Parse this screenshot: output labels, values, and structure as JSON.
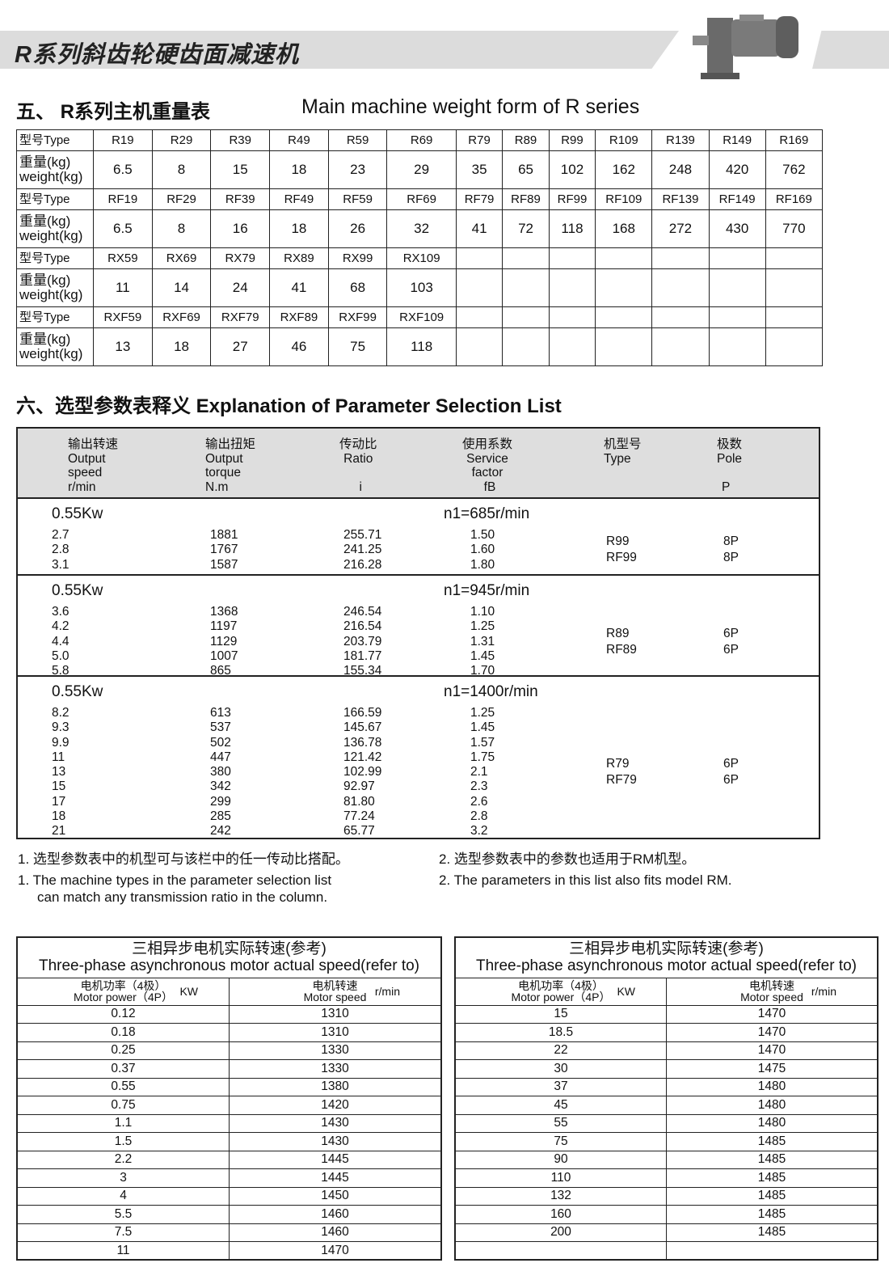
{
  "banner": {
    "title": "R系列斜齿轮硬齿面减速机"
  },
  "section5": {
    "title_cn": "五、 R系列主机重量表",
    "title_en": "Main machine weight form of  R series"
  },
  "weight_table": {
    "type_label": "型号Type",
    "weight_label_cn": "重量(kg)",
    "weight_label_en": "weight(kg)",
    "groups": [
      {
        "types": [
          "R19",
          "R29",
          "R39",
          "R49",
          "R59",
          "R69",
          "R79",
          "R89",
          "R99",
          "R109",
          "R139",
          "R149",
          "R169"
        ],
        "weights": [
          "6.5",
          "8",
          "15",
          "18",
          "23",
          "29",
          "35",
          "65",
          "102",
          "162",
          "248",
          "420",
          "762"
        ]
      },
      {
        "types": [
          "RF19",
          "RF29",
          "RF39",
          "RF49",
          "RF59",
          "RF69",
          "RF79",
          "RF89",
          "RF99",
          "RF109",
          "RF139",
          "RF149",
          "RF169"
        ],
        "weights": [
          "6.5",
          "8",
          "16",
          "18",
          "26",
          "32",
          "41",
          "72",
          "118",
          "168",
          "272",
          "430",
          "770"
        ]
      },
      {
        "types": [
          "RX59",
          "RX69",
          "RX79",
          "RX89",
          "RX99",
          "RX109",
          "",
          "",
          "",
          "",
          "",
          "",
          ""
        ],
        "weights": [
          "11",
          "14",
          "24",
          "41",
          "68",
          "103",
          "",
          "",
          "",
          "",
          "",
          "",
          ""
        ]
      },
      {
        "types": [
          "RXF59",
          "RXF69",
          "RXF79",
          "RXF89",
          "RXF99",
          "RXF109",
          "",
          "",
          "",
          "",
          "",
          "",
          ""
        ],
        "weights": [
          "13",
          "18",
          "27",
          "46",
          "75",
          "118",
          "",
          "",
          "",
          "",
          "",
          "",
          ""
        ]
      }
    ]
  },
  "section6": {
    "title": "六、选型参数表释义 Explanation  of  Parameter Selection List"
  },
  "param_table": {
    "headers": [
      {
        "lines": [
          "输出转速",
          "Output",
          "speed",
          "r/min"
        ]
      },
      {
        "lines": [
          "输出扭矩",
          "Output",
          "torque",
          "N.m"
        ]
      },
      {
        "lines": [
          "传动比",
          "Ratio",
          "",
          "i"
        ]
      },
      {
        "lines": [
          "使用系数",
          "Service",
          "factor",
          "fB"
        ]
      },
      {
        "lines": [
          "机型号",
          "Type",
          "",
          ""
        ]
      },
      {
        "lines": [
          "极数",
          "Pole",
          "",
          "P"
        ]
      }
    ],
    "groups": [
      {
        "power": "0.55Kw",
        "n1": "n1=685r/min",
        "types": [
          "R99",
          "RF99"
        ],
        "poles": [
          "8P",
          "8P"
        ],
        "rows": [
          [
            "2.7",
            "1881",
            "255.71",
            "1.50"
          ],
          [
            "2.8",
            "1767",
            "241.25",
            "1.60"
          ],
          [
            "3.1",
            "1587",
            "216.28",
            "1.80"
          ]
        ]
      },
      {
        "power": "0.55Kw",
        "n1": "n1=945r/min",
        "types": [
          "R89",
          "RF89"
        ],
        "poles": [
          "6P",
          "6P"
        ],
        "rows": [
          [
            "3.6",
            "1368",
            "246.54",
            "1.10"
          ],
          [
            "4.2",
            "1197",
            "216.54",
            "1.25"
          ],
          [
            "4.4",
            "1129",
            "203.79",
            "1.31"
          ],
          [
            "5.0",
            "1007",
            "181.77",
            "1.45"
          ],
          [
            "5.8",
            "865",
            "155.34",
            "1.70"
          ]
        ]
      },
      {
        "power": "0.55Kw",
        "n1": "n1=1400r/min",
        "types": [
          "R79",
          "RF79"
        ],
        "poles": [
          "6P",
          "6P"
        ],
        "rows": [
          [
            "8.2",
            "613",
            "166.59",
            "1.25"
          ],
          [
            "9.3",
            "537",
            "145.67",
            "1.45"
          ],
          [
            "9.9",
            "502",
            "136.78",
            "1.57"
          ],
          [
            "11",
            "447",
            "121.42",
            "1.75"
          ],
          [
            "13",
            "380",
            "102.99",
            "2.1"
          ],
          [
            "15",
            "342",
            "92.97",
            "2.3"
          ],
          [
            "17",
            "299",
            "81.80",
            "2.6"
          ],
          [
            "18",
            "285",
            "77.24",
            "2.8"
          ],
          [
            "21",
            "242",
            "65.77",
            "3.2"
          ]
        ]
      }
    ]
  },
  "notes": {
    "n1_cn": "1. 选型参数表中的机型可与该栏中的任一传动比搭配。",
    "n2_cn": "2. 选型参数表中的参数也适用于RM机型。",
    "n1_en_a": "1. The machine types in the parameter selection list",
    "n1_en_b": "can match any transmission ratio in the column.",
    "n2_en": "2. The parameters in this list also fits model RM."
  },
  "motor_tables": [
    {
      "title_cn": "三相异步电机实际转速(参考)",
      "title_en": "Three-phase asynchronous motor actual speed(refer to)",
      "col1_cn": "电机功率（4极）",
      "col1_en": "Motor power（4P）",
      "col1_unit": "KW",
      "col2_cn": "电机转速",
      "col2_en": "Motor speed",
      "col2_unit": "r/min",
      "rows": [
        [
          "0.12",
          "1310"
        ],
        [
          "0.18",
          "1310"
        ],
        [
          "0.25",
          "1330"
        ],
        [
          "0.37",
          "1330"
        ],
        [
          "0.55",
          "1380"
        ],
        [
          "0.75",
          "1420"
        ],
        [
          "1.1",
          "1430"
        ],
        [
          "1.5",
          "1430"
        ],
        [
          "2.2",
          "1445"
        ],
        [
          "3",
          "1445"
        ],
        [
          "4",
          "1450"
        ],
        [
          "5.5",
          "1460"
        ],
        [
          "7.5",
          "1460"
        ],
        [
          "11",
          "1470"
        ]
      ]
    },
    {
      "title_cn": "三相异步电机实际转速(参考)",
      "title_en": "Three-phase asynchronous motor actual speed(refer to)",
      "col1_cn": "电机功率（4极）",
      "col1_en": "Motor power（4P）",
      "col1_unit": "KW",
      "col2_cn": "电机转速",
      "col2_en": "Motor speed",
      "col2_unit": "r/min",
      "rows": [
        [
          "15",
          "1470"
        ],
        [
          "18.5",
          "1470"
        ],
        [
          "22",
          "1470"
        ],
        [
          "30",
          "1475"
        ],
        [
          "37",
          "1480"
        ],
        [
          "45",
          "1480"
        ],
        [
          "55",
          "1480"
        ],
        [
          "75",
          "1485"
        ],
        [
          "90",
          "1485"
        ],
        [
          "110",
          "1485"
        ],
        [
          "132",
          "1485"
        ],
        [
          "160",
          "1485"
        ],
        [
          "200",
          "1485"
        ],
        [
          "",
          ""
        ]
      ]
    }
  ]
}
